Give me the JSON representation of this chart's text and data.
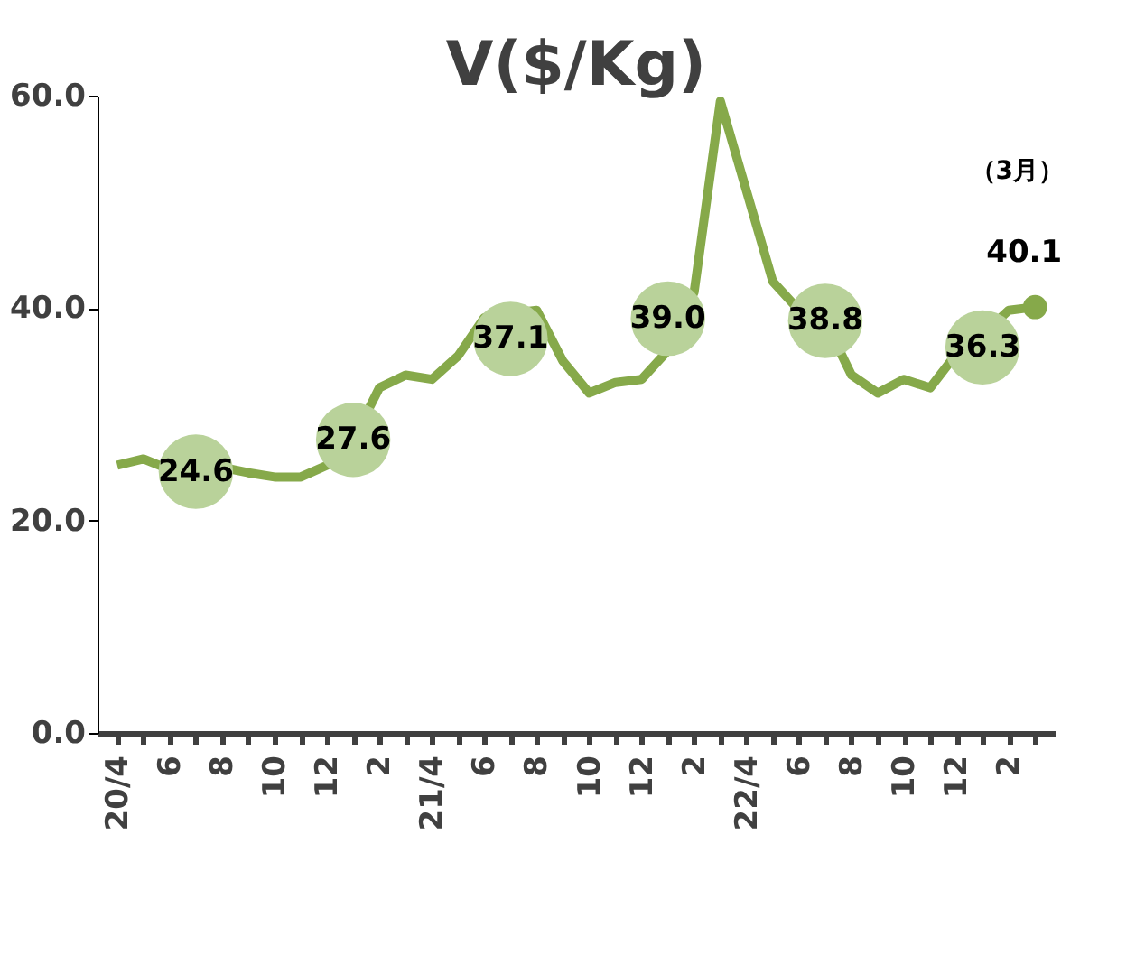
{
  "chart_data": {
    "type": "line",
    "title": "V($/Kg)",
    "categories": [
      "20/4",
      null,
      "6",
      null,
      "8",
      null,
      "10",
      null,
      "12",
      null,
      "2",
      null,
      "21/4",
      null,
      "6",
      null,
      "8",
      null,
      "10",
      null,
      "12",
      null,
      "2",
      null,
      "22/4",
      null,
      "6",
      null,
      "8",
      null,
      "10",
      null,
      "12",
      null,
      "2",
      null
    ],
    "series": [
      {
        "color": "#86a94a",
        "marker": "none",
        "values": [
          25.2,
          25.8,
          24.8,
          24.6,
          25.0,
          24.5,
          24.1,
          24.1,
          25.2,
          27.6,
          32.5,
          33.7,
          33.3,
          35.5,
          39.1,
          39.5,
          39.8,
          35.0,
          32.0,
          33.0,
          33.3,
          36.0,
          41.5,
          59.5,
          51.0,
          42.5,
          39.8,
          38.8,
          33.7,
          32.0,
          33.3,
          32.5,
          35.7,
          37.5,
          39.8,
          40.1
        ],
        "value_labels": [
          null,
          null,
          null,
          null,
          null,
          null,
          null,
          null,
          null,
          null,
          null,
          null,
          null,
          null,
          null,
          null,
          null,
          null,
          null,
          null,
          null,
          null,
          null,
          null,
          null,
          null,
          null,
          null,
          null,
          null,
          null,
          null,
          null,
          null,
          null,
          "40.1"
        ]
      },
      {
        "type": "scatter",
        "color": "#b9d29a",
        "marker": "circle",
        "values": [
          null,
          null,
          null,
          24.6,
          null,
          null,
          null,
          null,
          null,
          27.6,
          null,
          null,
          null,
          null,
          null,
          37.1,
          null,
          null,
          null,
          null,
          null,
          39.0,
          null,
          null,
          null,
          null,
          null,
          38.8,
          null,
          null,
          null,
          null,
          null,
          36.3,
          null,
          null
        ],
        "value_labels": [
          null,
          null,
          null,
          "24.6",
          null,
          null,
          null,
          null,
          null,
          "27.6",
          null,
          null,
          null,
          null,
          null,
          "37.1",
          null,
          null,
          null,
          null,
          null,
          "39.0",
          null,
          null,
          null,
          null,
          null,
          "38.8",
          null,
          null,
          null,
          null,
          null,
          "36.3",
          null,
          null
        ]
      }
    ],
    "ylim": [
      0,
      60
    ],
    "yticks": [
      {
        "value": 0,
        "label": "0.0"
      },
      {
        "value": 20,
        "label": "20.0"
      },
      {
        "value": 40,
        "label": "40.0"
      },
      {
        "value": 60,
        "label": "60.0"
      }
    ],
    "annotations": [
      "（3月）"
    ],
    "grid": false
  }
}
